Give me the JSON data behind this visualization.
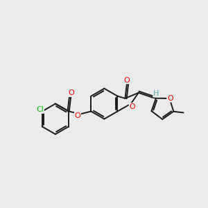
{
  "background_color": "#ebebeb",
  "bond_color": "#1a1a1a",
  "bond_width": 1.4,
  "atom_colors": {
    "O": "#ff0000",
    "Cl": "#00bb00",
    "H": "#4fa8a8",
    "C": "#1a1a1a"
  },
  "figsize": [
    3.0,
    3.0
  ],
  "dpi": 100,
  "xlim": [
    -1.7,
    2.05
  ],
  "ylim": [
    -1.15,
    1.1
  ]
}
